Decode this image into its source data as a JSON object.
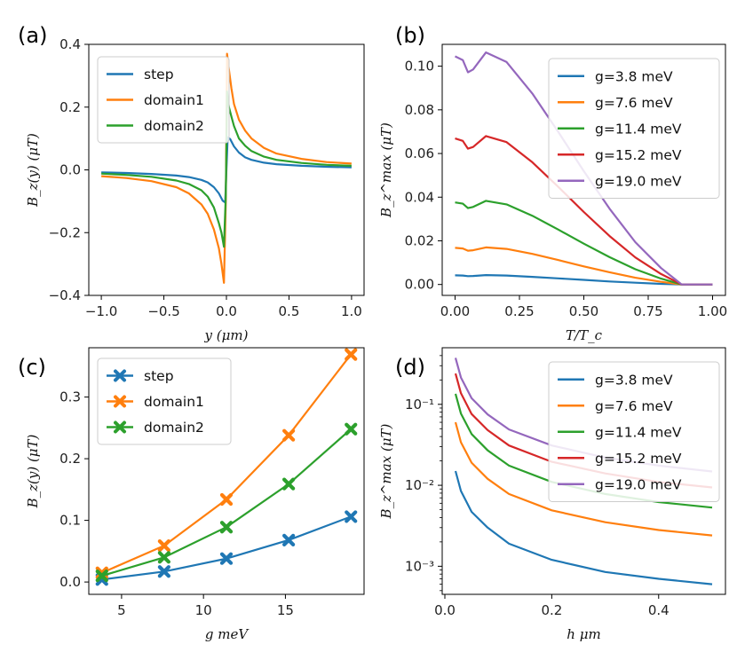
{
  "colors": {
    "blue": "#1f77b4",
    "orange": "#ff7f0e",
    "green": "#2ca02c",
    "red": "#d62728",
    "purple": "#9467bd"
  },
  "chart_data": [
    {
      "panel": "(a)",
      "type": "line",
      "xlabel": "y (μm)",
      "ylabel": "B_z(y) (μT)",
      "xlim": [
        -1.1,
        1.1
      ],
      "ylim": [
        -0.4,
        0.4
      ],
      "xticks": [
        -1.0,
        -0.5,
        0.0,
        0.5,
        1.0
      ],
      "xtick_labels": [
        "−1.0",
        "−0.5",
        "0.0",
        "0.5",
        "1.0"
      ],
      "yticks": [
        -0.4,
        -0.2,
        0.0,
        0.2,
        0.4
      ],
      "ytick_labels": [
        "−0.4",
        "−0.2",
        "0.0",
        "0.2",
        "0.4"
      ],
      "legend": "top-left",
      "series": [
        {
          "name": "step",
          "color": "#1f77b4",
          "x": [
            -1.0,
            -0.8,
            -0.6,
            -0.4,
            -0.3,
            -0.2,
            -0.15,
            -0.1,
            -0.06,
            -0.03,
            -0.01,
            0.0,
            0.01,
            0.03,
            0.06,
            0.1,
            0.15,
            0.2,
            0.3,
            0.4,
            0.6,
            0.8,
            1.0
          ],
          "y": [
            -0.008,
            -0.01,
            -0.013,
            -0.018,
            -0.023,
            -0.032,
            -0.04,
            -0.055,
            -0.075,
            -0.098,
            -0.104,
            0.0,
            0.104,
            0.098,
            0.075,
            0.055,
            0.04,
            0.032,
            0.023,
            0.018,
            0.013,
            0.01,
            0.008
          ]
        },
        {
          "name": "domain1",
          "color": "#ff7f0e",
          "x": [
            -1.0,
            -0.8,
            -0.6,
            -0.4,
            -0.3,
            -0.2,
            -0.15,
            -0.1,
            -0.06,
            -0.04,
            -0.02,
            -0.005,
            0.005,
            0.02,
            0.04,
            0.06,
            0.1,
            0.15,
            0.2,
            0.3,
            0.4,
            0.6,
            0.8,
            1.0
          ],
          "y": [
            -0.02,
            -0.026,
            -0.036,
            -0.055,
            -0.075,
            -0.11,
            -0.14,
            -0.19,
            -0.25,
            -0.3,
            -0.36,
            -0.1,
            0.37,
            0.32,
            0.26,
            0.21,
            0.16,
            0.125,
            0.1,
            0.07,
            0.052,
            0.035,
            0.025,
            0.02
          ]
        },
        {
          "name": "domain2",
          "color": "#2ca02c",
          "x": [
            -1.0,
            -0.8,
            -0.6,
            -0.4,
            -0.3,
            -0.2,
            -0.15,
            -0.1,
            -0.06,
            -0.04,
            -0.02,
            -0.005,
            0.005,
            0.02,
            0.04,
            0.06,
            0.1,
            0.15,
            0.2,
            0.3,
            0.4,
            0.6,
            0.8,
            1.0
          ],
          "y": [
            -0.012,
            -0.016,
            -0.022,
            -0.034,
            -0.045,
            -0.065,
            -0.085,
            -0.12,
            -0.17,
            -0.2,
            -0.245,
            -0.08,
            0.25,
            0.2,
            0.17,
            0.14,
            0.1,
            0.077,
            0.06,
            0.042,
            0.032,
            0.022,
            0.016,
            0.013
          ]
        }
      ]
    },
    {
      "panel": "(b)",
      "type": "line",
      "xlabel": "T/T_c",
      "ylabel": "B_z^max (μT)",
      "xlim": [
        -0.05,
        1.05
      ],
      "ylim": [
        -0.005,
        0.11
      ],
      "xticks": [
        0.0,
        0.25,
        0.5,
        0.75,
        1.0
      ],
      "xtick_labels": [
        "0.00",
        "0.25",
        "0.50",
        "0.75",
        "1.00"
      ],
      "yticks": [
        0.0,
        0.02,
        0.04,
        0.06,
        0.08,
        0.1
      ],
      "ytick_labels": [
        "0.00",
        "0.02",
        "0.04",
        "0.06",
        "0.08",
        "0.10"
      ],
      "legend": "top-right",
      "series": [
        {
          "name": "g=3.8 meV",
          "color": "#1f77b4",
          "x": [
            0.0,
            0.03,
            0.05,
            0.07,
            0.12,
            0.2,
            0.3,
            0.4,
            0.5,
            0.6,
            0.7,
            0.8,
            0.88,
            1.0
          ],
          "y": [
            0.0042,
            0.0041,
            0.0038,
            0.0039,
            0.0043,
            0.0041,
            0.0035,
            0.0028,
            0.0021,
            0.0014,
            0.0008,
            0.0003,
            0.0,
            0.0
          ]
        },
        {
          "name": "g=7.6 meV",
          "color": "#ff7f0e",
          "x": [
            0.0,
            0.03,
            0.05,
            0.07,
            0.12,
            0.2,
            0.3,
            0.4,
            0.5,
            0.6,
            0.7,
            0.8,
            0.88,
            1.0
          ],
          "y": [
            0.0168,
            0.0165,
            0.0155,
            0.0157,
            0.017,
            0.0163,
            0.014,
            0.0112,
            0.0083,
            0.0056,
            0.0031,
            0.0012,
            0.0,
            0.0
          ]
        },
        {
          "name": "g=11.4 meV",
          "color": "#2ca02c",
          "x": [
            0.0,
            0.03,
            0.05,
            0.07,
            0.12,
            0.2,
            0.3,
            0.4,
            0.5,
            0.6,
            0.7,
            0.8,
            0.88,
            1.0
          ],
          "y": [
            0.0376,
            0.037,
            0.035,
            0.0355,
            0.0383,
            0.0367,
            0.0315,
            0.0252,
            0.0187,
            0.0125,
            0.007,
            0.0027,
            0.0,
            0.0
          ]
        },
        {
          "name": "g=15.2 meV",
          "color": "#d62728",
          "x": [
            0.0,
            0.03,
            0.05,
            0.07,
            0.12,
            0.2,
            0.3,
            0.4,
            0.5,
            0.6,
            0.7,
            0.8,
            0.88,
            1.0
          ],
          "y": [
            0.0669,
            0.0658,
            0.0622,
            0.063,
            0.068,
            0.0652,
            0.056,
            0.0448,
            0.0332,
            0.0222,
            0.0124,
            0.0048,
            0.0,
            0.0
          ]
        },
        {
          "name": "g=19.0 meV",
          "color": "#9467bd",
          "x": [
            0.0,
            0.03,
            0.05,
            0.07,
            0.12,
            0.2,
            0.3,
            0.4,
            0.5,
            0.6,
            0.7,
            0.8,
            0.88,
            1.0
          ],
          "y": [
            0.1045,
            0.1028,
            0.0972,
            0.0985,
            0.1063,
            0.1019,
            0.0875,
            0.07,
            0.0519,
            0.0347,
            0.0194,
            0.0075,
            0.0,
            0.0
          ]
        }
      ]
    },
    {
      "panel": "(c)",
      "type": "line",
      "markers": "X",
      "xlabel": "g meV",
      "ylabel": "B_z(y) (μT)",
      "xlim": [
        3.0,
        19.8
      ],
      "ylim": [
        -0.02,
        0.38
      ],
      "xticks": [
        5,
        10,
        15
      ],
      "xtick_labels": [
        "5",
        "10",
        "15"
      ],
      "yticks": [
        0.0,
        0.1,
        0.2,
        0.3
      ],
      "ytick_labels": [
        "0.0",
        "0.1",
        "0.2",
        "0.3"
      ],
      "legend": "top-left",
      "series": [
        {
          "name": "step",
          "color": "#1f77b4",
          "x": [
            3.8,
            7.6,
            11.4,
            15.2,
            19.0
          ],
          "y": [
            0.004,
            0.017,
            0.038,
            0.068,
            0.106
          ]
        },
        {
          "name": "domain1",
          "color": "#ff7f0e",
          "x": [
            3.8,
            7.6,
            11.4,
            15.2,
            19.0
          ],
          "y": [
            0.015,
            0.059,
            0.134,
            0.238,
            0.369
          ]
        },
        {
          "name": "domain2",
          "color": "#2ca02c",
          "x": [
            3.8,
            7.6,
            11.4,
            15.2,
            19.0
          ],
          "y": [
            0.01,
            0.04,
            0.089,
            0.159,
            0.248
          ]
        }
      ]
    },
    {
      "panel": "(d)",
      "type": "line",
      "yscale": "log",
      "xlabel": "h μm",
      "ylabel": "B_z^max (μT)",
      "xlim": [
        -0.005,
        0.525
      ],
      "ylim": [
        0.00045,
        0.5
      ],
      "xticks": [
        0.0,
        0.2,
        0.4
      ],
      "xtick_labels": [
        "0.0",
        "0.2",
        "0.4"
      ],
      "yticks": [
        0.001,
        0.01,
        0.1
      ],
      "ytick_labels": [
        "10⁻³",
        "10⁻²",
        "10⁻¹"
      ],
      "legend": "top-right",
      "series": [
        {
          "name": "g=3.8 meV",
          "color": "#1f77b4",
          "x": [
            0.02,
            0.03,
            0.05,
            0.08,
            0.12,
            0.2,
            0.3,
            0.4,
            0.5
          ],
          "y": [
            0.015,
            0.0085,
            0.0047,
            0.003,
            0.0019,
            0.0012,
            0.00085,
            0.0007,
            0.0006
          ]
        },
        {
          "name": "g=7.6 meV",
          "color": "#ff7f0e",
          "x": [
            0.02,
            0.03,
            0.05,
            0.08,
            0.12,
            0.2,
            0.3,
            0.4,
            0.5
          ],
          "y": [
            0.06,
            0.034,
            0.019,
            0.012,
            0.0078,
            0.0049,
            0.0035,
            0.0028,
            0.0024
          ]
        },
        {
          "name": "g=11.4 meV",
          "color": "#2ca02c",
          "x": [
            0.02,
            0.03,
            0.05,
            0.08,
            0.12,
            0.2,
            0.3,
            0.4,
            0.5
          ],
          "y": [
            0.135,
            0.077,
            0.043,
            0.027,
            0.0175,
            0.011,
            0.0078,
            0.0062,
            0.0053
          ]
        },
        {
          "name": "g=15.2 meV",
          "color": "#d62728",
          "x": [
            0.02,
            0.03,
            0.05,
            0.08,
            0.12,
            0.2,
            0.3,
            0.4,
            0.5
          ],
          "y": [
            0.24,
            0.137,
            0.076,
            0.048,
            0.031,
            0.0195,
            0.014,
            0.011,
            0.0094
          ]
        },
        {
          "name": "g=19.0 meV",
          "color": "#9467bd",
          "x": [
            0.02,
            0.03,
            0.05,
            0.08,
            0.12,
            0.2,
            0.3,
            0.4,
            0.5
          ],
          "y": [
            0.375,
            0.214,
            0.119,
            0.075,
            0.049,
            0.031,
            0.022,
            0.0175,
            0.0148
          ]
        }
      ]
    }
  ]
}
